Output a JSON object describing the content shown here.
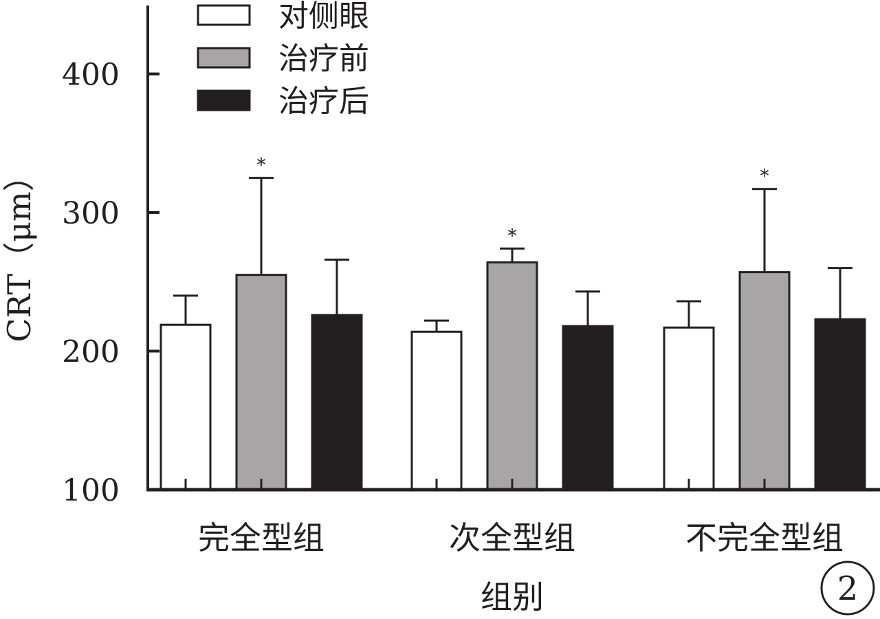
{
  "chart_data": {
    "type": "bar",
    "categories": [
      "完全型组",
      "次全型组",
      "不完全型组"
    ],
    "series": [
      {
        "name": "对侧眼",
        "values": [
          219,
          214,
          217
        ],
        "errors": [
          21,
          8,
          19
        ],
        "color": "#ffffff"
      },
      {
        "name": "治疗前",
        "values": [
          255,
          264,
          257
        ],
        "errors": [
          70,
          10,
          60
        ],
        "color": "#a7a5a6"
      },
      {
        "name": "治疗后",
        "values": [
          226,
          218,
          223
        ],
        "errors": [
          40,
          25,
          37
        ],
        "color": "#231f20"
      }
    ],
    "significance": [
      [
        "",
        "*",
        ""
      ],
      [
        "",
        "*",
        ""
      ],
      [
        "",
        "*",
        ""
      ]
    ],
    "ylabel": "CRT（μm）",
    "xlabel": "组别",
    "ylim": [
      100,
      450
    ],
    "yticks": [
      100,
      200,
      300,
      400
    ],
    "legend_position": "top-left",
    "grid": false,
    "axis_color": "#231f20"
  },
  "panel_label": "2"
}
